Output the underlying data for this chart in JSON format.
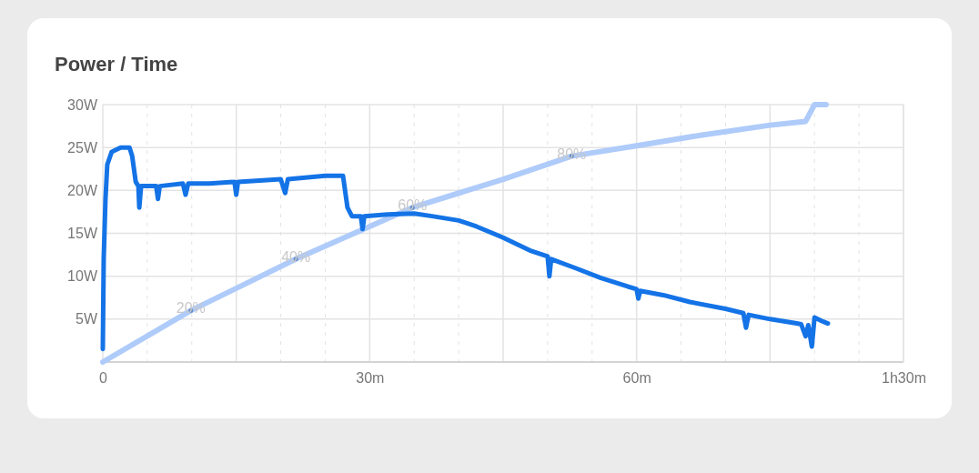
{
  "chart_data": {
    "type": "line",
    "title": "Power / Time",
    "xlim": [
      0,
      90
    ],
    "xticks": [
      0,
      {
        "value": 15,
        "label": null
      },
      {
        "value": 30,
        "label": "30m"
      },
      {
        "value": 45,
        "label": null
      },
      {
        "value": 60,
        "label": "60m"
      },
      {
        "value": 75,
        "label": null
      },
      {
        "value": 90,
        "label": "1h30m"
      }
    ],
    "ylim": [
      0,
      30
    ],
    "yticks": [
      {
        "value": 0,
        "label": null
      },
      {
        "value": 5,
        "label": "5W"
      },
      {
        "value": 10,
        "label": "10W"
      },
      {
        "value": 15,
        "label": "15W"
      },
      {
        "value": 20,
        "label": "20W"
      },
      {
        "value": 25,
        "label": "25W"
      },
      {
        "value": 30,
        "label": "30W"
      }
    ],
    "y2lim": [
      0,
      100
    ],
    "grid": true,
    "series": [
      {
        "color": "#aecbfa",
        "axis": "y2",
        "x": [
          0,
          9.9,
          21.7,
          34.8,
          45,
          52.7,
          60,
          67,
          75,
          79,
          80,
          81.3
        ],
        "values": [
          0,
          20,
          40,
          60,
          71,
          80,
          84,
          88,
          92,
          93.5,
          100,
          100
        ],
        "value_labels": [
          null,
          "20%",
          "40%",
          "60%",
          null,
          "80%",
          null,
          null,
          null,
          null,
          null,
          null
        ]
      },
      {
        "color": "#1473e6",
        "x": [
          0,
          0.1,
          0.3,
          0.5,
          1,
          2,
          3,
          3.3,
          3.7,
          4,
          4.1,
          4.3,
          6,
          6.2,
          6.4,
          9,
          9.3,
          9.6,
          12,
          14.8,
          15,
          15.2,
          20,
          20.5,
          20.8,
          25,
          27,
          27.5,
          28,
          29,
          29.2,
          29.4,
          32,
          35,
          37,
          40,
          42,
          45,
          48,
          50,
          50.2,
          50.4,
          53,
          56,
          59,
          60,
          60.2,
          60.4,
          63,
          66,
          70,
          72,
          72.3,
          72.6,
          75,
          78,
          78.5,
          79,
          79.3,
          79.7,
          80,
          81,
          81.5
        ],
        "values": [
          1.5,
          12,
          19,
          23,
          24.5,
          25,
          25,
          24,
          21,
          20.5,
          18,
          20.5,
          20.5,
          19,
          20.5,
          20.8,
          19.5,
          20.8,
          20.8,
          21,
          19.5,
          21,
          21.3,
          19.7,
          21.3,
          21.7,
          21.7,
          18,
          17,
          17,
          15.5,
          17,
          17.2,
          17.3,
          17,
          16.5,
          15.8,
          14.5,
          13,
          12.3,
          10,
          12,
          11,
          9.8,
          8.8,
          8.5,
          7.4,
          8.3,
          7.8,
          7,
          6.2,
          5.7,
          4,
          5.5,
          5,
          4.5,
          4.4,
          3,
          4.3,
          1.8,
          5.2,
          4.7,
          4.5
        ]
      }
    ]
  }
}
